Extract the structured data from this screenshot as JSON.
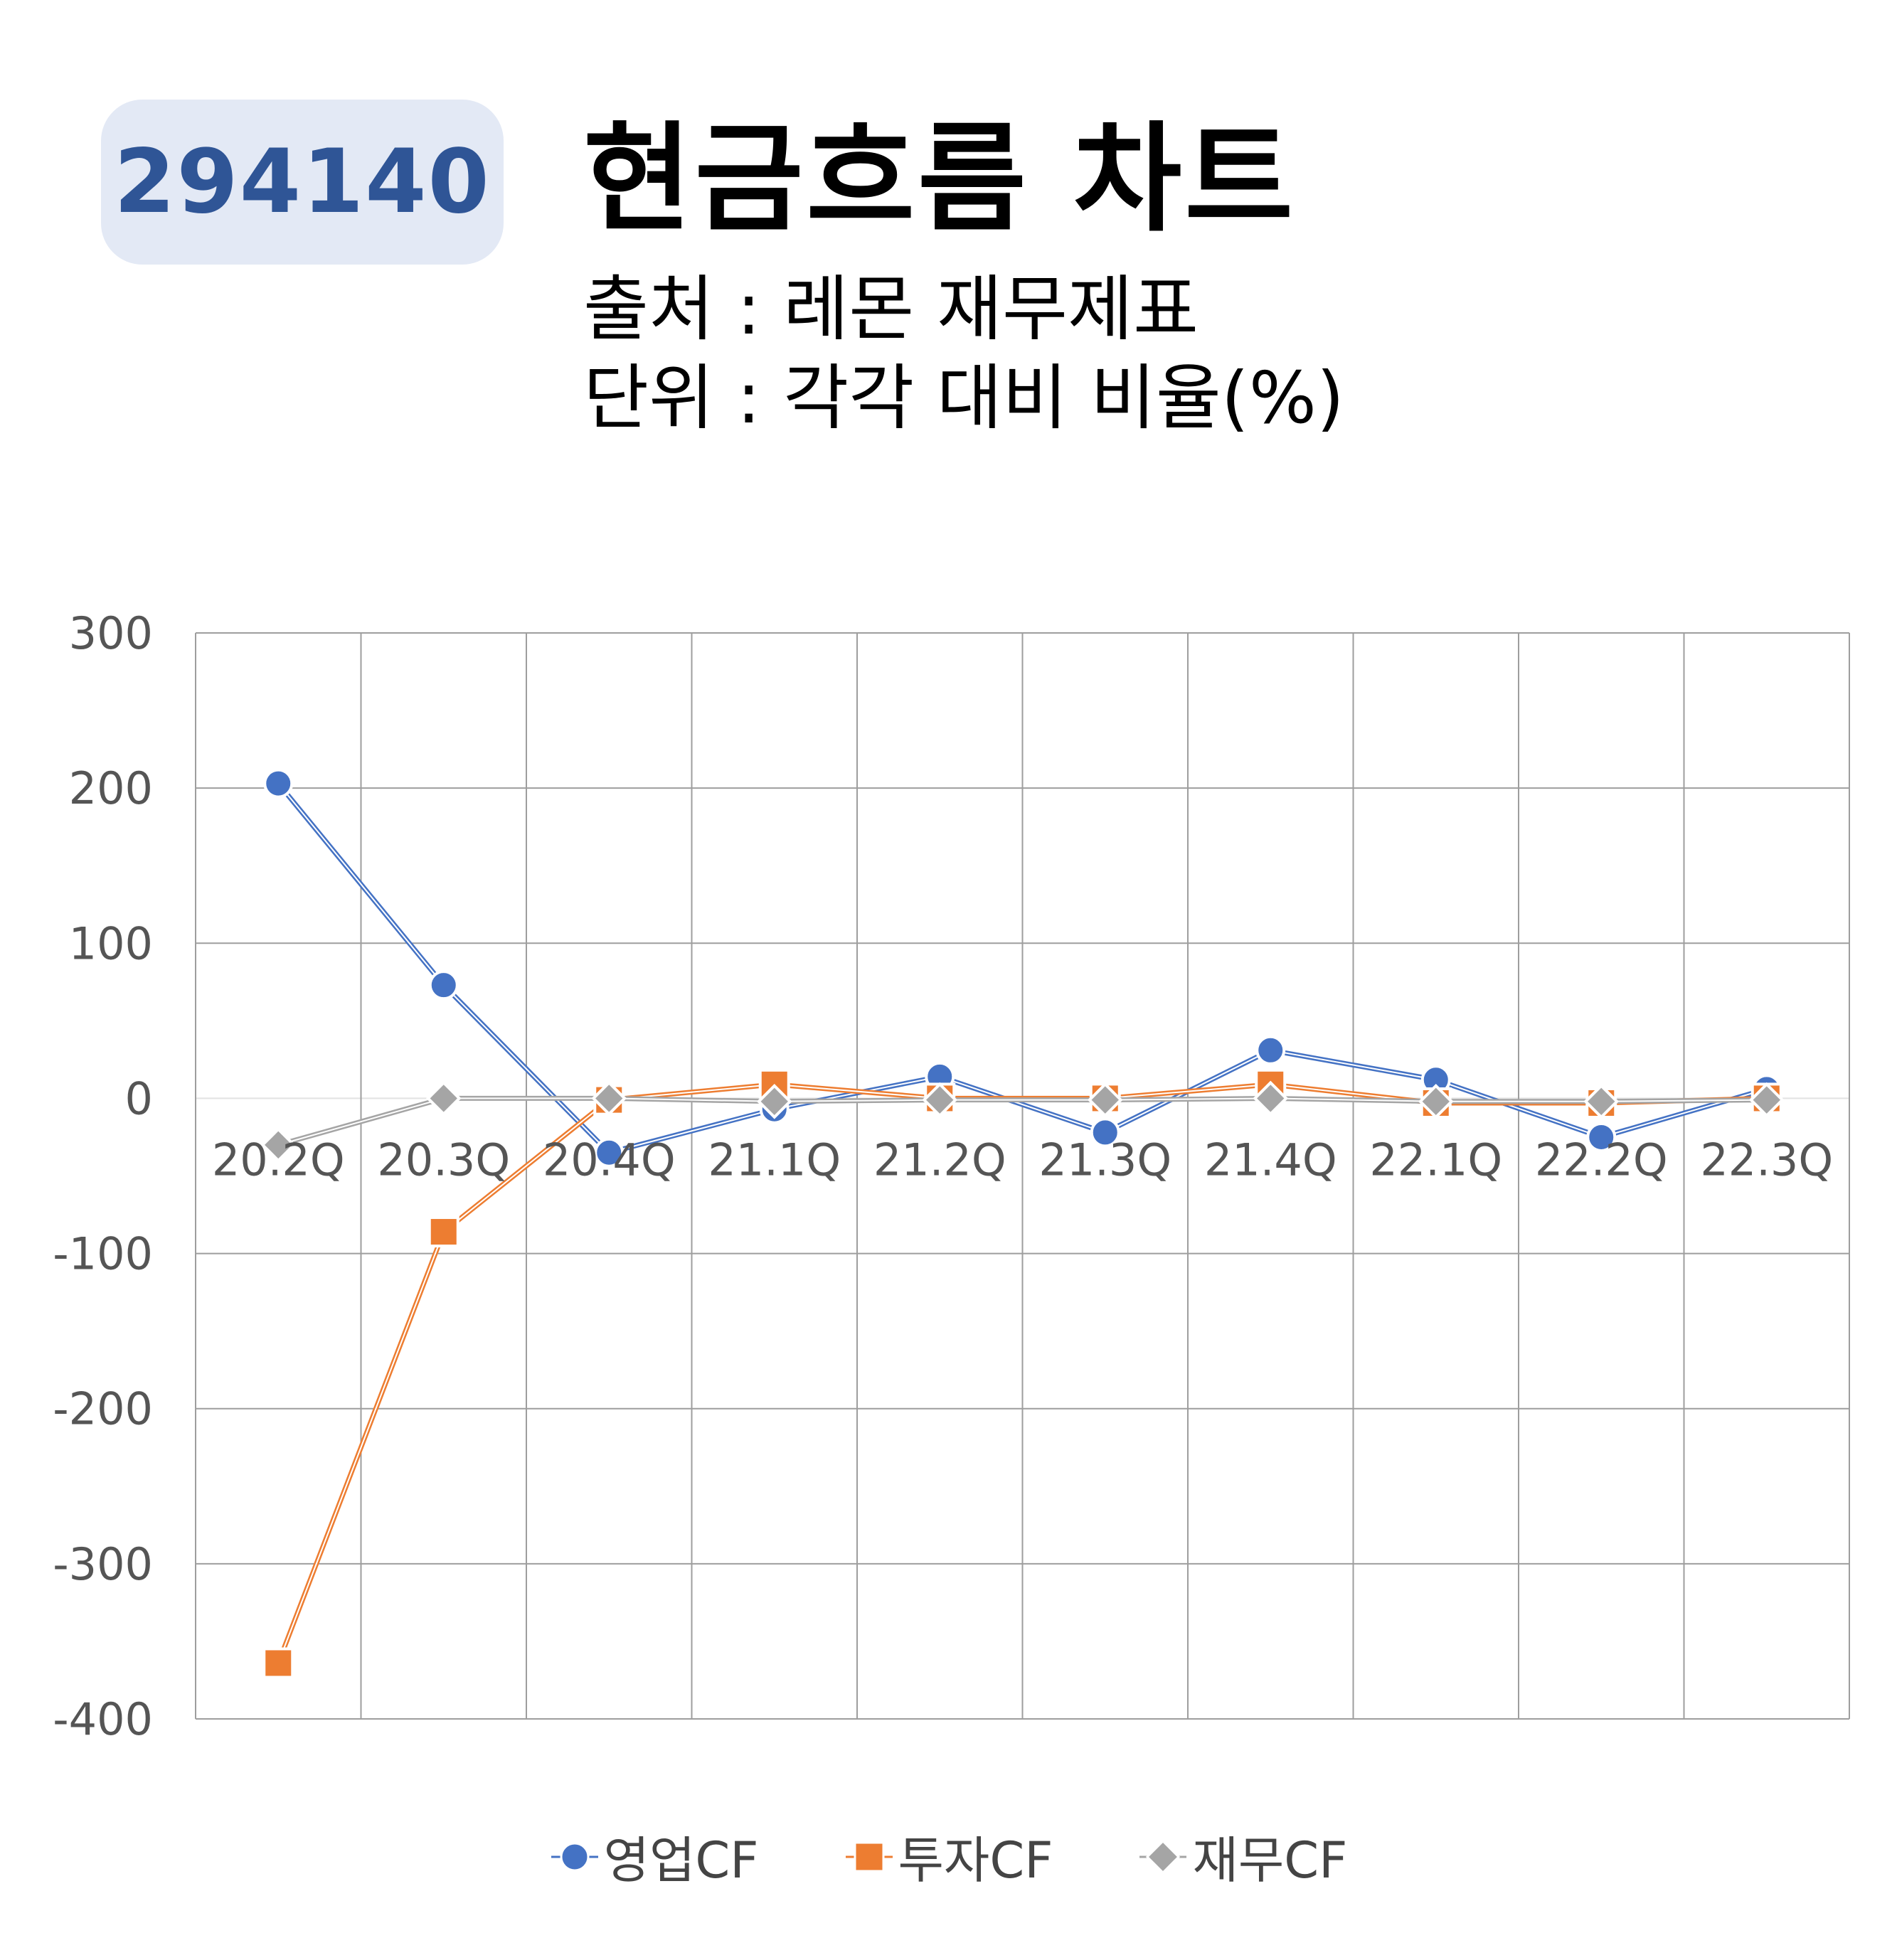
{
  "badge": {
    "code": "294140"
  },
  "header": {
    "title": "현금흐름 차트",
    "source": "출처 : 레몬 재무제표",
    "unit": "단위 : 각각 대비 비율(%)"
  },
  "colors": {
    "badge_bg": "#e3e9f5",
    "badge_text": "#2f5596",
    "series_operating": "#4472c4",
    "series_investing": "#ed7d31",
    "series_financing": "#a5a5a5",
    "grid": "#9e9e9e"
  },
  "legend": {
    "items": [
      {
        "label": "영업CF",
        "marker": "circle-marker-icon"
      },
      {
        "label": "투자CF",
        "marker": "square-marker-icon"
      },
      {
        "label": "재무CF",
        "marker": "diamond-marker-icon"
      }
    ]
  },
  "chart_data": {
    "type": "line",
    "title": "현금흐름 차트",
    "categories": [
      "20.2Q",
      "20.3Q",
      "20.4Q",
      "21.1Q",
      "21.2Q",
      "21.3Q",
      "21.4Q",
      "22.1Q",
      "22.2Q",
      "22.3Q"
    ],
    "ylim": [
      -400,
      300
    ],
    "yticks": [
      300,
      200,
      100,
      0,
      -100,
      -200,
      -300,
      -400
    ],
    "grid": true,
    "legend_position": "bottom",
    "series": [
      {
        "name": "영업CF",
        "marker": "circle",
        "color": "#4472c4",
        "values": [
          203,
          73,
          -35,
          -7,
          14,
          -22,
          31,
          12,
          -25,
          6
        ]
      },
      {
        "name": "투자CF",
        "marker": "square",
        "color": "#ed7d31",
        "values": [
          -364,
          -86,
          -1,
          9,
          0,
          0,
          9,
          -3,
          -3,
          0
        ]
      },
      {
        "name": "재무CF",
        "marker": "diamond",
        "color": "#a5a5a5",
        "values": [
          -30,
          0,
          0,
          -2,
          -1,
          -1,
          0,
          -2,
          -2,
          -1
        ]
      }
    ]
  }
}
